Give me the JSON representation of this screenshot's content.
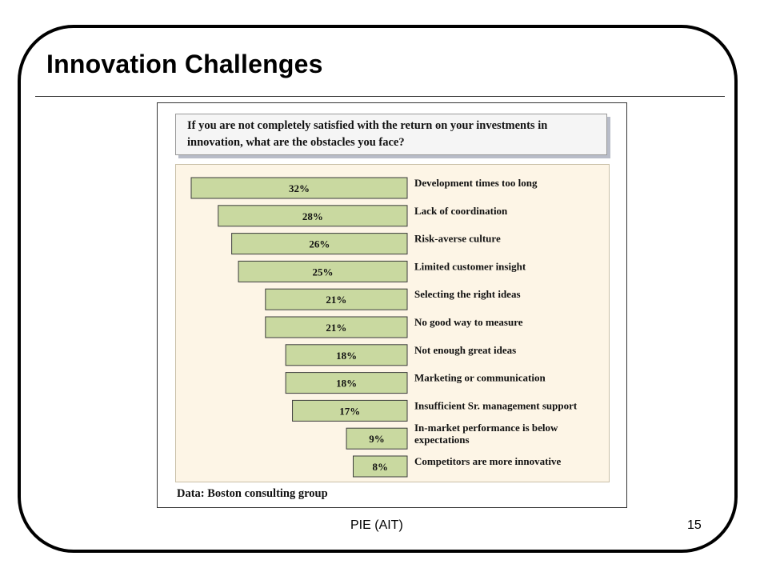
{
  "slide": {
    "title": "Innovation Challenges",
    "footer": "PIE (AIT)",
    "page_number": "15"
  },
  "figure": {
    "question": "If you are not completely satisfied with the return on your investments in innovation, what are the obstacles you face?",
    "source": "Data: Boston consulting group"
  },
  "colors": {
    "bar_fill": "#c9d9a0",
    "bar_stroke": "#3c3c3c",
    "panel_bg": "#fdf5e6"
  },
  "chart_data": {
    "type": "bar",
    "orientation": "horizontal",
    "title": "",
    "xlabel": "",
    "ylabel": "",
    "xlim": [
      0,
      32
    ],
    "grid": false,
    "categories": [
      "Development times too long",
      "Lack of coordination",
      "Risk-averse culture",
      "Limited customer insight",
      "Selecting the right ideas",
      "No good way to measure",
      "Not enough great ideas",
      "Marketing or communication",
      "Insufficient Sr. management support",
      "In-market performance is below expectations",
      "Competitors are more innovative"
    ],
    "category_lines": [
      [
        "Development times too long"
      ],
      [
        "Lack of coordination"
      ],
      [
        "Risk-averse culture"
      ],
      [
        "Limited customer insight"
      ],
      [
        "Selecting the right ideas"
      ],
      [
        "No good way to measure"
      ],
      [
        "Not enough great ideas"
      ],
      [
        "Marketing or communication"
      ],
      [
        "Insufficient Sr. management support"
      ],
      [
        "In-market performance is below",
        "expectations"
      ],
      [
        "Competitors are more innovative"
      ]
    ],
    "values": [
      32,
      28,
      26,
      25,
      21,
      21,
      18,
      18,
      17,
      9,
      8
    ],
    "data_labels": [
      "32%",
      "28%",
      "26%",
      "25%",
      "21%",
      "21%",
      "18%",
      "18%",
      "17%",
      "9%",
      "8%"
    ]
  }
}
